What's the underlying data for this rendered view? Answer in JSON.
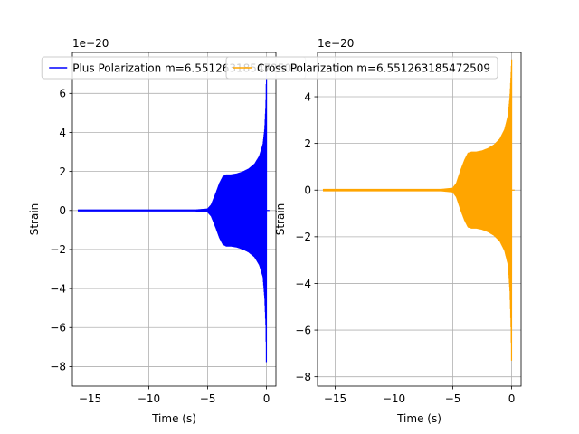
{
  "chart_data": [
    {
      "type": "line",
      "title": "",
      "xlabel": "Time (s)",
      "ylabel": "Strain",
      "offset_label": "1e−20",
      "xlim": [
        -16.5,
        0.8
      ],
      "ylim": [
        -9.0,
        8.1
      ],
      "xticks": [
        -15,
        -10,
        -5,
        0
      ],
      "yticks": [
        -8,
        -6,
        -4,
        -2,
        0,
        2,
        4,
        6
      ],
      "grid": true,
      "legend": "top-center",
      "series": [
        {
          "name": "Plus Polarization m=6.551263185472509",
          "color": "#0000ff",
          "envelope": {
            "t": [
              -16.0,
              -10.0,
              -6.0,
              -5.0,
              -4.7,
              -4.3,
              -4.0,
              -3.7,
              -3.4,
              -3.0,
              -2.5,
              -2.0,
              -1.5,
              -1.0,
              -0.6,
              -0.3,
              -0.15,
              -0.05,
              0.0
            ],
            "upper": [
              0.05,
              0.05,
              0.05,
              0.1,
              0.3,
              0.9,
              1.4,
              1.75,
              1.85,
              1.85,
              1.9,
              2.0,
              2.15,
              2.4,
              2.8,
              3.4,
              4.2,
              5.5,
              7.3
            ],
            "lower": [
              -0.05,
              -0.05,
              -0.05,
              -0.1,
              -0.3,
              -0.9,
              -1.4,
              -1.75,
              -1.85,
              -1.85,
              -1.9,
              -2.0,
              -2.15,
              -2.4,
              -2.8,
              -3.4,
              -4.5,
              -6.0,
              -8.3
            ]
          }
        },
        {
          "name": "Cross Polarization m=6.551263185472509",
          "color": "#ffa500",
          "envelope": {
            "t": [
              -16.0,
              -10.0,
              -6.0,
              -5.0,
              -4.7,
              -4.3,
              -4.0,
              -3.7,
              -3.4,
              -3.0,
              -2.5,
              -2.0,
              -1.5,
              -1.0,
              -0.6,
              -0.3,
              -0.15,
              -0.05,
              0.0
            ],
            "upper": [
              0.05,
              0.05,
              0.05,
              0.1,
              0.3,
              0.9,
              1.3,
              1.6,
              1.65,
              1.65,
              1.7,
              1.8,
              1.95,
              2.2,
              2.6,
              3.2,
              4.0,
              5.0,
              5.6
            ],
            "lower": [
              -0.05,
              -0.05,
              -0.05,
              -0.1,
              -0.3,
              -0.9,
              -1.3,
              -1.6,
              -1.65,
              -1.65,
              -1.7,
              -1.8,
              -1.95,
              -2.2,
              -2.6,
              -3.2,
              -4.3,
              -6.0,
              -7.7
            ]
          }
        }
      ]
    },
    {
      "type": "line",
      "title": "",
      "xlabel": "Time (s)",
      "ylabel": "Strain",
      "offset_label": "1e−20",
      "xlim": [
        -16.5,
        0.8
      ],
      "ylim": [
        -8.4,
        5.9
      ],
      "xticks": [
        -15,
        -10,
        -5,
        0
      ],
      "yticks": [
        -8,
        -6,
        -4,
        -2,
        0,
        2,
        4
      ],
      "grid": true,
      "series_ref": 1
    }
  ]
}
